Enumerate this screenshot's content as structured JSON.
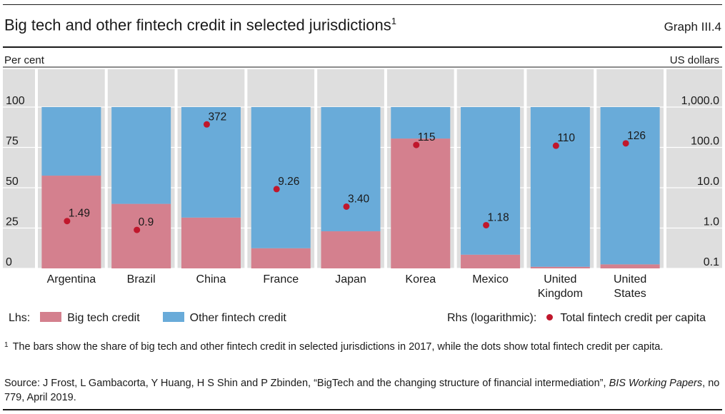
{
  "header": {
    "title": "Big tech and other fintech credit in selected jurisdictions",
    "title_footnote_mark": "1",
    "graph_id": "Graph III.4"
  },
  "chart_data": {
    "type": "bar",
    "stacked": true,
    "lhs_unit": "Per cent",
    "rhs_unit": "US dollars",
    "ylim_left": [
      0,
      100
    ],
    "yticks_left": [
      "0",
      "25",
      "50",
      "75",
      "100"
    ],
    "ylim_right": [
      0.1,
      1000
    ],
    "rhs_scale": "log",
    "yticks_right": [
      "0.1",
      "1.0",
      "10.0",
      "100.0",
      "1,000.0"
    ],
    "categories": [
      "Argentina",
      "Brazil",
      "China",
      "France",
      "Japan",
      "Korea",
      "Mexico",
      "United Kingdom",
      "United States"
    ],
    "series": [
      {
        "name": "Big tech credit",
        "axis": "left",
        "color": "#d4808e",
        "values": [
          57.5,
          40,
          31.5,
          12.5,
          23,
          80.5,
          8.5,
          1,
          2.5
        ]
      },
      {
        "name": "Other fintech credit",
        "axis": "left",
        "color": "#69abd9",
        "values": [
          42.5,
          60,
          68.5,
          87.5,
          77,
          19.5,
          91.5,
          99,
          97.5
        ]
      },
      {
        "name": "Total fintech credit per capita",
        "axis": "right",
        "type": "scatter",
        "color": "#c0172c",
        "values": [
          1.49,
          0.9,
          372,
          9.26,
          3.4,
          115,
          1.18,
          110,
          126
        ],
        "labels": [
          "1.49",
          "0.9",
          "372",
          "9.26",
          "3.40",
          "115",
          "1.18",
          "110",
          "126"
        ]
      }
    ],
    "background": "#dedede",
    "grid": true,
    "legend_position": "bottom"
  },
  "legend": {
    "lhs_label": "Lhs:",
    "big_tech": "Big tech credit",
    "other_fintech": "Other fintech credit",
    "rhs_label": "Rhs (logarithmic):",
    "total": "Total fintech credit per capita"
  },
  "footnote": {
    "mark": "1",
    "text": "The bars show the share of big tech and other fintech credit in selected jurisdictions in 2017, while the dots show total fintech credit per capita."
  },
  "source": {
    "prefix": "Source: J Frost, L Gambacorta, Y Huang, H S Shin and P Zbinden, “BigTech and the changing structure of financial intermediation”, ",
    "journal": "BIS Working Papers",
    "suffix": ", no 779, April 2019."
  }
}
